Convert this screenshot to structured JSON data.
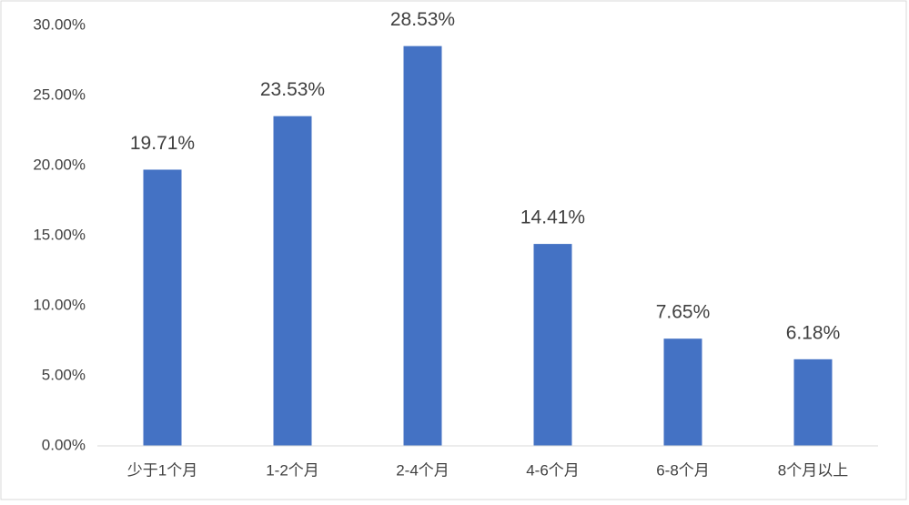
{
  "chart_data": {
    "type": "bar",
    "categories": [
      "少于1个月",
      "1-2个月",
      "2-4个月",
      "4-6个月",
      "6-8个月",
      "8个月以上"
    ],
    "values": [
      19.71,
      23.53,
      28.53,
      14.41,
      7.65,
      6.18
    ],
    "value_labels": [
      "19.71%",
      "23.53%",
      "28.53%",
      "14.41%",
      "7.65%",
      "6.18%"
    ],
    "color": "#4472c4",
    "ylim": [
      0,
      30
    ],
    "yticks": [
      {
        "value": 0,
        "label": "0.00%"
      },
      {
        "value": 5,
        "label": "5.00%"
      },
      {
        "value": 10,
        "label": "10.00%"
      },
      {
        "value": 15,
        "label": "15.00%"
      },
      {
        "value": 20,
        "label": "20.00%"
      },
      {
        "value": 25,
        "label": "25.00%"
      },
      {
        "value": 30,
        "label": "30.00%"
      }
    ],
    "grid": false
  }
}
